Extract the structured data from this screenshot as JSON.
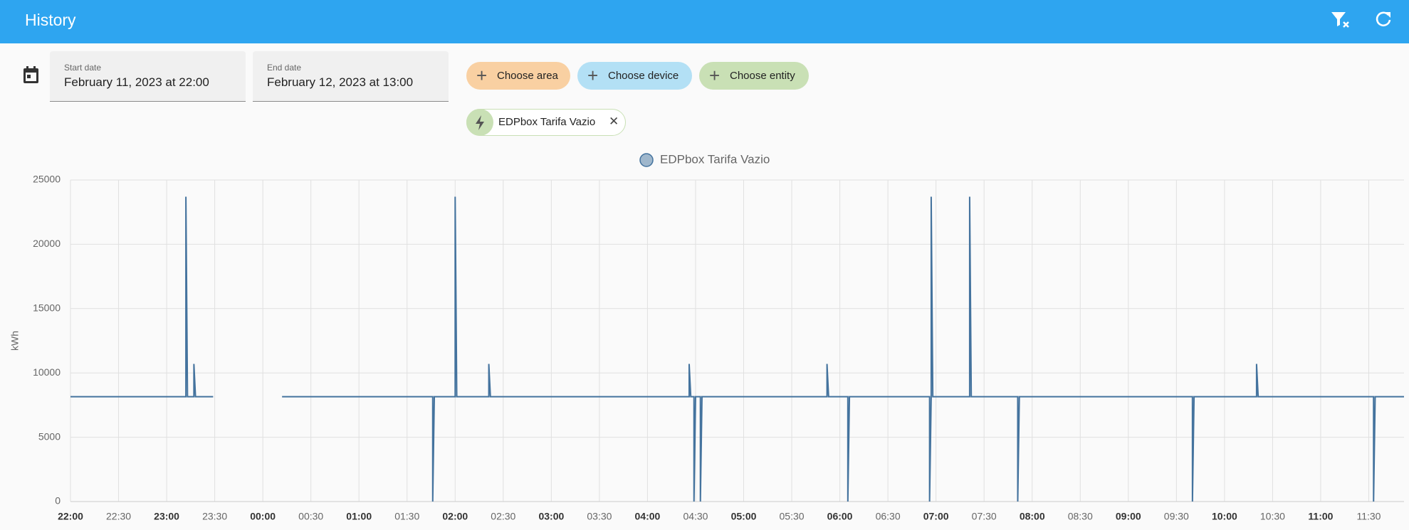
{
  "header": {
    "title": "History"
  },
  "filters": {
    "start_date": {
      "label": "Start date",
      "value": "February 11, 2023 at 22:00"
    },
    "end_date": {
      "label": "End date",
      "value": "February 12, 2023 at 13:00"
    },
    "chips": [
      "Choose area",
      "Choose device",
      "Choose entity"
    ],
    "selected": [
      "EDPbox Tarifa Vazio"
    ]
  },
  "chart_data": {
    "type": "line",
    "y_label": "kWh",
    "grid": true,
    "legend": "top",
    "xlim": [
      "22:00",
      "11:52"
    ],
    "xticks": [
      {
        "value": "22:00",
        "label": "22:00"
      },
      {
        "value": "22:30",
        "label": "22:30"
      },
      {
        "value": "23:00",
        "label": "23:00"
      },
      {
        "value": "23:30",
        "label": "23:30"
      },
      {
        "value": "00:00",
        "label": "00:00"
      },
      {
        "value": "00:30",
        "label": "00:30"
      },
      {
        "value": "01:00",
        "label": "01:00"
      },
      {
        "value": "01:30",
        "label": "01:30"
      },
      {
        "value": "02:00",
        "label": "02:00"
      },
      {
        "value": "02:30",
        "label": "02:30"
      },
      {
        "value": "03:00",
        "label": "03:00"
      },
      {
        "value": "03:30",
        "label": "03:30"
      },
      {
        "value": "04:00",
        "label": "04:00"
      },
      {
        "value": "04:30",
        "label": "04:30"
      },
      {
        "value": "05:00",
        "label": "05:00"
      },
      {
        "value": "05:30",
        "label": "05:30"
      },
      {
        "value": "06:00",
        "label": "06:00"
      },
      {
        "value": "06:30",
        "label": "06:30"
      },
      {
        "value": "07:00",
        "label": "07:00"
      },
      {
        "value": "07:30",
        "label": "07:30"
      },
      {
        "value": "08:00",
        "label": "08:00"
      },
      {
        "value": "08:30",
        "label": "08:30"
      },
      {
        "value": "09:00",
        "label": "09:00"
      },
      {
        "value": "09:30",
        "label": "09:30"
      },
      {
        "value": "10:00",
        "label": "10:00"
      },
      {
        "value": "10:30",
        "label": "10:30"
      },
      {
        "value": "11:00",
        "label": "11:00"
      },
      {
        "value": "11:30",
        "label": "11:30"
      }
    ],
    "ylim": [
      0,
      25000
    ],
    "yticks": [
      0,
      5000,
      10000,
      15000,
      20000,
      25000
    ],
    "x": [
      "22:00",
      "23:12",
      "23:12",
      "23:13",
      "23:17",
      "23:17",
      "23:18",
      "23:29",
      "23:50",
      "00:12",
      "01:46",
      "01:46",
      "01:47",
      "02:00",
      "02:00",
      "02:01",
      "02:21",
      "02:21",
      "02:22",
      "04:26",
      "04:26",
      "04:27",
      "04:29",
      "04:29",
      "04:30",
      "04:33",
      "04:33",
      "04:34",
      "05:52",
      "05:52",
      "05:53",
      "06:05",
      "06:05",
      "06:06",
      "06:56",
      "06:56",
      "06:57",
      "06:57",
      "06:58",
      "07:21",
      "07:21",
      "07:22",
      "07:51",
      "07:51",
      "07:52",
      "09:40",
      "09:40",
      "09:41",
      "10:20",
      "10:20",
      "10:21",
      "11:33",
      "11:33",
      "11:34",
      "11:52"
    ],
    "series": [
      {
        "name": "EDPbox Tarifa Vazio",
        "color": "#44739e",
        "values": [
          8150,
          8150,
          23700,
          8150,
          8150,
          10700,
          8150,
          8150,
          null,
          8150,
          8150,
          0,
          8150,
          8150,
          23700,
          8150,
          8150,
          10700,
          8150,
          8150,
          10700,
          8150,
          8150,
          0,
          8150,
          8150,
          0,
          8150,
          8150,
          10700,
          8150,
          8150,
          0,
          8150,
          8150,
          0,
          8150,
          23700,
          8150,
          8150,
          23700,
          8150,
          8150,
          0,
          8150,
          8150,
          0,
          8150,
          8150,
          10700,
          8150,
          8150,
          0,
          8150,
          8150
        ]
      }
    ]
  }
}
